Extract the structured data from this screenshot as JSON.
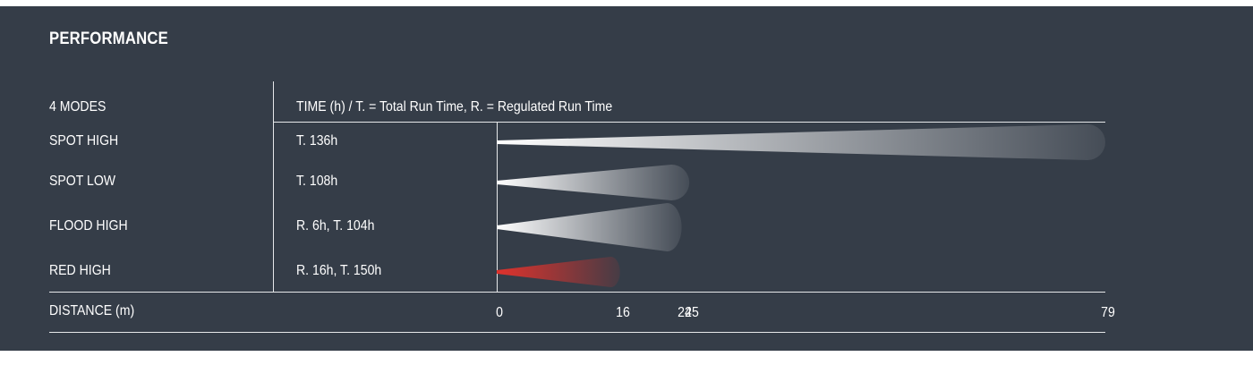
{
  "title": "PERFORMANCE",
  "header": {
    "modes_label": "4 MODES",
    "time_label": "TIME (h) / T. = Total Run Time, R. = Regulated Run Time"
  },
  "rows": [
    {
      "mode": "SPOT HIGH",
      "time": "T. 136h"
    },
    {
      "mode": "SPOT LOW",
      "time": "T. 108h"
    },
    {
      "mode": "FLOOD HIGH",
      "time": "R. 6h, T. 104h"
    },
    {
      "mode": "RED HIGH",
      "time": "R. 16h, T. 150h"
    }
  ],
  "footer": {
    "distance_label": "DISTANCE (m)"
  },
  "colors": {
    "background": "#353d48",
    "beam_white": "#ffffff",
    "beam_red": "#e0322c",
    "rule": "#e6e8ea"
  },
  "chart_data": {
    "type": "bar",
    "categories": [
      "SPOT HIGH",
      "SPOT LOW",
      "FLOOD HIGH",
      "RED HIGH"
    ],
    "values": [
      79,
      25,
      24,
      16
    ],
    "beam_shape": [
      "narrow",
      "narrow",
      "wide",
      "medium"
    ],
    "beam_color": [
      "white",
      "white",
      "white",
      "red"
    ],
    "xlabel": "DISTANCE (m)",
    "ticks": [
      0,
      16,
      24,
      25,
      79
    ],
    "xlim": [
      0,
      79
    ]
  }
}
